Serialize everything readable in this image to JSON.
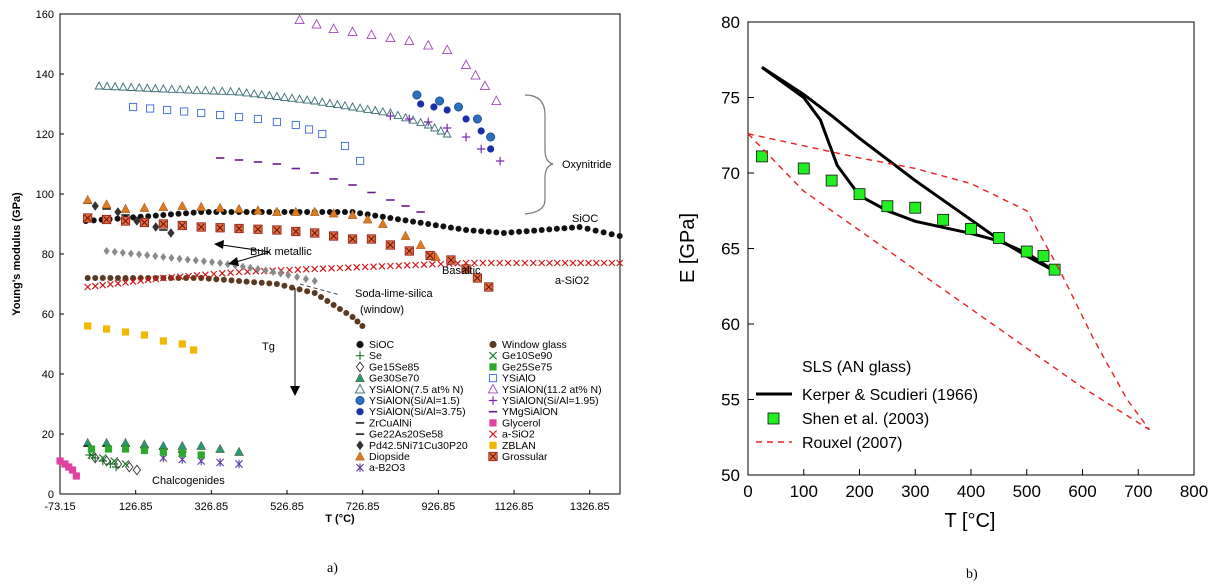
{
  "panel_labels": {
    "a": "a)",
    "b": "b)"
  },
  "chart_data": [
    {
      "type": "scatter",
      "title": "",
      "xlabel": "T (°C)",
      "ylabel": "Young's modulus (GPa)",
      "xlim": [
        -73.15,
        1406.85
      ],
      "ylim": [
        0,
        160
      ],
      "x_ticks": [
        "-73.15",
        "126.85",
        "326.85",
        "526.85",
        "726.85",
        "926.85",
        "1126.85",
        "1326.85"
      ],
      "y_ticks": [
        "0",
        "20",
        "40",
        "60",
        "80",
        "100",
        "120",
        "140",
        "160"
      ],
      "grid": false,
      "legend_placement": "bottom-center",
      "annotations": {
        "oxynitride": "Oxynitride",
        "sioc": "SiOC",
        "bulk_metallic": "Bulk metallic",
        "basaltic": "Basaltic",
        "asio2": "a-SiO2",
        "soda_lime": "Soda-lime-silica",
        "window": "(window)",
        "tg": "Tg",
        "chalcogenides": "Chalcogenides"
      },
      "series": [
        {
          "name": "SiOC",
          "points": [
            [
              -5,
              91
            ],
            [
              100,
              92
            ],
            [
              200,
              93
            ],
            [
              300,
              94
            ],
            [
              400,
              94
            ],
            [
              500,
              94
            ],
            [
              600,
              94
            ],
            [
              700,
              94
            ],
            [
              800,
              92
            ],
            [
              900,
              90
            ],
            [
              1000,
              88
            ],
            [
              1100,
              87
            ],
            [
              1200,
              88
            ],
            [
              1300,
              89
            ],
            [
              1406,
              86
            ]
          ]
        },
        {
          "name": "Se",
          "points": [
            [
              5,
              13
            ],
            [
              20,
              12
            ],
            [
              40,
              11
            ],
            [
              60,
              10
            ],
            [
              75,
              9
            ]
          ]
        },
        {
          "name": "Ge15Se85",
          "points": [
            [
              20,
              12
            ],
            [
              50,
              11
            ],
            [
              80,
              10
            ],
            [
              110,
              9
            ],
            [
              130,
              8
            ]
          ]
        },
        {
          "name": "Ge30Se70",
          "points": [
            [
              0,
              17
            ],
            [
              100,
              17
            ],
            [
              200,
              16
            ],
            [
              300,
              16
            ],
            [
              400,
              14
            ]
          ]
        },
        {
          "name": "YSiAlON(7.5 at% N)",
          "points": [
            [
              30,
              136
            ],
            [
              200,
              135
            ],
            [
              400,
              134
            ],
            [
              600,
              131
            ],
            [
              800,
              127
            ],
            [
              900,
              123
            ],
            [
              950,
              120
            ]
          ]
        },
        {
          "name": "YSiAlON(Si/Al=1.5)",
          "points": [
            [
              870,
              133
            ],
            [
              930,
              131
            ],
            [
              980,
              129
            ],
            [
              1030,
              125
            ],
            [
              1065,
              119
            ]
          ]
        },
        {
          "name": "YSiAlON(Si/Al=3.75)",
          "points": [
            [
              880,
              130
            ],
            [
              950,
              128
            ],
            [
              1000,
              125
            ],
            [
              1040,
              121
            ],
            [
              1065,
              115
            ]
          ]
        },
        {
          "name": "ZrCuAlNi",
          "points": [
            [
              0,
              97
            ],
            [
              50,
              95
            ],
            [
              100,
              93
            ],
            [
              150,
              90
            ],
            [
              200,
              88
            ]
          ]
        },
        {
          "name": "Ge22As20Se58",
          "points": [
            [
              0,
              16
            ],
            [
              100,
              16
            ],
            [
              200,
              15
            ],
            [
              250,
              14
            ]
          ]
        },
        {
          "name": "Pd42.5Ni71Cu30P20",
          "points": [
            [
              20,
              96
            ],
            [
              80,
              94
            ],
            [
              130,
              91
            ],
            [
              180,
              89
            ],
            [
              220,
              87
            ]
          ]
        },
        {
          "name": "Diopside",
          "points": [
            [
              0,
              98
            ],
            [
              100,
              95
            ],
            [
              250,
              96
            ],
            [
              400,
              95
            ],
            [
              500,
              94
            ],
            [
              600,
              94
            ],
            [
              700,
              93
            ],
            [
              780,
              90
            ],
            [
              840,
              86
            ],
            [
              880,
              83
            ],
            [
              920,
              79
            ]
          ]
        },
        {
          "name": "a-B2O3",
          "points": [
            [
              200,
              12
            ],
            [
              300,
              11
            ],
            [
              400,
              10
            ]
          ]
        },
        {
          "name": "Window glass",
          "points": [
            [
              0,
              72
            ],
            [
              100,
              72
            ],
            [
              200,
              72
            ],
            [
              300,
              72
            ],
            [
              400,
              71
            ],
            [
              500,
              70
            ],
            [
              600,
              67
            ],
            [
              650,
              63
            ],
            [
              700,
              59
            ],
            [
              726,
              56
            ]
          ]
        },
        {
          "name": "Ge10Se90",
          "points": [
            [
              10,
              13
            ],
            [
              40,
              12
            ],
            [
              70,
              11
            ],
            [
              100,
              10
            ]
          ]
        },
        {
          "name": "Ge25Se75",
          "points": [
            [
              10,
              15
            ],
            [
              100,
              15
            ],
            [
              200,
              14
            ],
            [
              300,
              13
            ]
          ]
        },
        {
          "name": "YSiAlO",
          "points": [
            [
              120,
              129
            ],
            [
              300,
              127
            ],
            [
              450,
              125
            ],
            [
              550,
              123
            ],
            [
              620,
              120
            ],
            [
              680,
              116
            ],
            [
              720,
              111
            ]
          ]
        },
        {
          "name": "YSiAlON(11.2 at% N)",
          "points": [
            [
              560,
              158
            ],
            [
              650,
              155
            ],
            [
              750,
              153
            ],
            [
              850,
              151
            ],
            [
              950,
              148
            ],
            [
              1000,
              143
            ],
            [
              1050,
              136
            ],
            [
              1080,
              131
            ]
          ]
        },
        {
          "name": "YSiAlON(Si/Al=1.95)",
          "points": [
            [
              800,
              126
            ],
            [
              900,
              124
            ],
            [
              950,
              122
            ],
            [
              1000,
              119
            ],
            [
              1040,
              115
            ],
            [
              1090,
              111
            ]
          ]
        },
        {
          "name": "YMgSiAlON",
          "points": [
            [
              350,
              112
            ],
            [
              500,
              110
            ],
            [
              600,
              107
            ],
            [
              700,
              103
            ],
            [
              800,
              98
            ],
            [
              880,
              94
            ]
          ]
        },
        {
          "name": "Glycerol",
          "points": [
            [
              -73,
              11
            ],
            [
              -60,
              10
            ],
            [
              -50,
              9
            ],
            [
              -40,
              8
            ],
            [
              -30,
              6
            ]
          ]
        },
        {
          "name": "a-SiO2",
          "points": [
            [
              0,
              69
            ],
            [
              200,
              72
            ],
            [
              400,
              74
            ],
            [
              600,
              75
            ],
            [
              800,
              76
            ],
            [
              1000,
              77
            ],
            [
              1200,
              77
            ],
            [
              1406,
              77
            ]
          ]
        },
        {
          "name": "ZBLAN",
          "points": [
            [
              0,
              56
            ],
            [
              50,
              55
            ],
            [
              100,
              54
            ],
            [
              150,
              53
            ],
            [
              200,
              51
            ],
            [
              250,
              50
            ],
            [
              280,
              48
            ]
          ]
        },
        {
          "name": "Grossular",
          "points": [
            [
              0,
              92
            ],
            [
              100,
              91
            ],
            [
              200,
              90
            ],
            [
              300,
              89
            ],
            [
              500,
              88
            ],
            [
              600,
              87
            ],
            [
              700,
              85
            ],
            [
              750,
              85
            ],
            [
              850,
              81
            ],
            [
              960,
              78
            ],
            [
              1000,
              75
            ],
            [
              1060,
              69
            ]
          ]
        },
        {
          "name": "Bulk metallic (grey)",
          "points": [
            [
              50,
              81
            ],
            [
              200,
              79
            ],
            [
              350,
              77
            ],
            [
              450,
              75
            ],
            [
              530,
              73
            ],
            [
              600,
              71
            ]
          ]
        }
      ]
    },
    {
      "type": "line",
      "title": "",
      "xlabel": "T  [°C]",
      "ylabel": "E  [GPa]",
      "xlim": [
        0,
        800
      ],
      "ylim": [
        50,
        80
      ],
      "x_ticks": [
        "0",
        "100",
        "200",
        "300",
        "400",
        "500",
        "600",
        "700",
        "800"
      ],
      "y_ticks": [
        "50",
        "55",
        "60",
        "65",
        "70",
        "75",
        "80"
      ],
      "grid": false,
      "legend_title": "SLS (AN glass)",
      "legend_placement": "bottom-left",
      "series": [
        {
          "name": "Kerper & Scudieri (1966)",
          "style": "solid-black",
          "points": [
            [
              25,
              77
            ],
            [
              100,
              75.2
            ],
            [
              150,
              73.8
            ],
            [
              200,
              72.3
            ],
            [
              250,
              70.9
            ],
            [
              300,
              69.5
            ],
            [
              350,
              68.2
            ],
            [
              400,
              66.9
            ],
            [
              450,
              65.6
            ],
            [
              500,
              64.5
            ],
            [
              550,
              63.5
            ]
          ]
        },
        {
          "name": "Kerper & Scudieri (1966) heating branch",
          "style": "solid-black",
          "points": [
            [
              25,
              77
            ],
            [
              100,
              75
            ],
            [
              130,
              73.5
            ],
            [
              160,
              70.5
            ],
            [
              200,
              68.5
            ],
            [
              250,
              67.5
            ],
            [
              300,
              66.8
            ],
            [
              400,
              66.0
            ],
            [
              450,
              65.5
            ],
            [
              500,
              64.7
            ],
            [
              550,
              63.5
            ]
          ]
        },
        {
          "name": "Shen et al. (2003)",
          "style": "green-square",
          "points": [
            [
              25,
              71.1
            ],
            [
              100,
              70.3
            ],
            [
              150,
              69.5
            ],
            [
              200,
              68.6
            ],
            [
              250,
              67.8
            ],
            [
              300,
              67.7
            ],
            [
              350,
              66.9
            ],
            [
              400,
              66.3
            ],
            [
              450,
              65.7
            ],
            [
              500,
              64.8
            ],
            [
              530,
              64.5
            ],
            [
              550,
              63.6
            ]
          ]
        },
        {
          "name": "Rouxel (2007)",
          "style": "dashed-red",
          "points": [
            [
              0,
              72.6
            ],
            [
              100,
              71.8
            ],
            [
              200,
              71.0
            ],
            [
              300,
              70.3
            ],
            [
              400,
              69.3
            ],
            [
              500,
              67.5
            ],
            [
              560,
              63.5
            ],
            [
              620,
              59.0
            ],
            [
              680,
              55.0
            ],
            [
              720,
              53.0
            ]
          ]
        },
        {
          "name": "Rouxel (2007) lower",
          "style": "dashed-red",
          "points": [
            [
              0,
              72.6
            ],
            [
              100,
              68.8
            ],
            [
              200,
              66.2
            ],
            [
              300,
              63.6
            ],
            [
              400,
              61.0
            ],
            [
              500,
              58.4
            ],
            [
              600,
              55.8
            ],
            [
              720,
              53.0
            ]
          ]
        }
      ]
    }
  ]
}
